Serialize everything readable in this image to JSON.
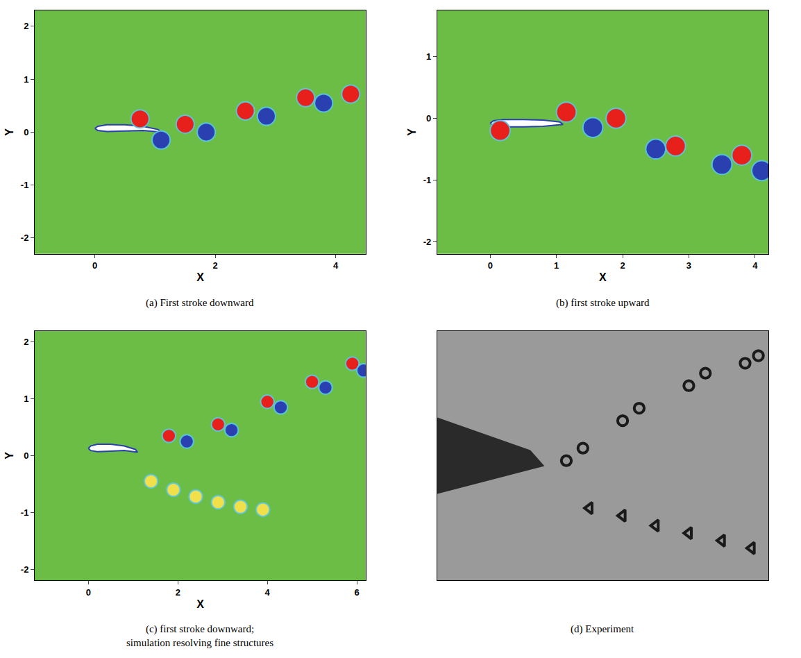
{
  "chart_data": [
    {
      "type": "scatter",
      "caption": [
        "(a) First stroke downward"
      ],
      "x_label": "X",
      "y_label": "Y",
      "xlim": [
        -1,
        4.5
      ],
      "xticks": [
        0,
        2,
        4
      ],
      "ylim": [
        -2.3,
        2.3
      ],
      "yticks": [
        -2,
        -1,
        0,
        1,
        2
      ],
      "color": "#6cbd45",
      "series": [
        {
          "type": "area",
          "color": "#ffffff",
          "x": [
            0,
            0.05,
            0.2,
            0.5,
            0.8,
            1.05,
            1.1,
            0.8,
            0.5,
            0.2,
            0.05,
            0
          ],
          "y": [
            0.07,
            0.11,
            0.14,
            0.14,
            0.11,
            0.05,
            0.0,
            0.03,
            0.02,
            0.01,
            0.03,
            0.07
          ]
        },
        {
          "color": "#e8201c",
          "marker": "circle",
          "x": [
            0.75,
            1.5,
            2.5,
            3.5,
            4.25
          ],
          "y": [
            0.25,
            0.15,
            0.4,
            0.65,
            0.72
          ]
        },
        {
          "color": "#2a3fb0",
          "marker": "circle",
          "x": [
            1.1,
            1.85,
            2.85,
            3.8
          ],
          "y": [
            -0.15,
            0.0,
            0.3,
            0.55
          ]
        }
      ]
    },
    {
      "type": "scatter",
      "caption": [
        "(b) first stroke upward"
      ],
      "x_label": "X",
      "y_label": "Y",
      "xlim": [
        -0.8,
        4.2
      ],
      "xticks": [
        0,
        1,
        2,
        3,
        4
      ],
      "ylim": [
        -2.2,
        1.75
      ],
      "yticks": [
        -2,
        -1,
        0,
        1
      ],
      "color": "#6cbd45",
      "series": [
        {
          "type": "area",
          "color": "#ffffff",
          "x": [
            0,
            0.05,
            0.2,
            0.5,
            0.8,
            1.05,
            1.1,
            0.8,
            0.5,
            0.2,
            0.05,
            0
          ],
          "y": [
            -0.08,
            -0.04,
            -0.02,
            -0.02,
            -0.03,
            -0.06,
            -0.1,
            -0.13,
            -0.14,
            -0.14,
            -0.12,
            -0.08
          ]
        },
        {
          "color": "#e8201c",
          "marker": "circle",
          "x": [
            0.15,
            1.15,
            1.9,
            2.8,
            3.8
          ],
          "y": [
            -0.2,
            0.1,
            0.0,
            -0.45,
            -0.6
          ]
        },
        {
          "color": "#2a3fb0",
          "marker": "circle",
          "x": [
            1.55,
            2.5,
            3.5,
            4.1
          ],
          "y": [
            -0.15,
            -0.5,
            -0.75,
            -0.85
          ]
        }
      ]
    },
    {
      "type": "scatter",
      "caption": [
        "(c) first stroke downward;",
        "simulation resolving fine structures"
      ],
      "x_label": "X",
      "y_label": "Y",
      "xlim": [
        -1.2,
        6.2
      ],
      "xticks": [
        0,
        2,
        4,
        6
      ],
      "ylim": [
        -2.2,
        2.2
      ],
      "yticks": [
        -2,
        -1,
        0,
        1,
        2
      ],
      "color": "#6cbd45",
      "series": [
        {
          "type": "area",
          "color": "#ffffff",
          "x": [
            0,
            0.05,
            0.2,
            0.5,
            0.8,
            1.05,
            1.1,
            0.8,
            0.5,
            0.2,
            0.05,
            0
          ],
          "y": [
            0.13,
            0.17,
            0.2,
            0.2,
            0.17,
            0.11,
            0.06,
            0.09,
            0.08,
            0.07,
            0.09,
            0.13
          ]
        },
        {
          "color": "#f2e04a",
          "marker": "circle",
          "x": [
            1.4,
            1.9,
            2.4,
            2.9,
            3.4,
            3.9
          ],
          "y": [
            -0.45,
            -0.6,
            -0.72,
            -0.82,
            -0.9,
            -0.95
          ]
        },
        {
          "color": "#e8201c",
          "marker": "circle",
          "x": [
            1.8,
            2.9,
            4.0,
            5.0,
            5.9
          ],
          "y": [
            0.35,
            0.55,
            0.95,
            1.3,
            1.62
          ]
        },
        {
          "color": "#2a3fb0",
          "marker": "circle",
          "x": [
            2.2,
            3.2,
            4.3,
            5.3,
            6.15
          ],
          "y": [
            0.25,
            0.45,
            0.85,
            1.2,
            1.5
          ]
        }
      ]
    },
    {
      "type": "scatter",
      "caption": [
        "(d) Experiment"
      ],
      "tick_labels": false,
      "xlim": [
        0,
        10
      ],
      "ylim": [
        0,
        10
      ],
      "color": "#9a9a9a",
      "series": [
        {
          "type": "area",
          "color": "#2a2a2a",
          "x": [
            0,
            2.8,
            3.2,
            0
          ],
          "y": [
            6.5,
            5.2,
            4.6,
            3.5
          ]
        },
        {
          "color": "#1a1a1a",
          "marker": "circle-open",
          "x": [
            3.9,
            4.4,
            5.6,
            6.1,
            7.6,
            8.1,
            9.3,
            9.7
          ],
          "y": [
            4.8,
            5.3,
            6.4,
            6.9,
            7.8,
            8.3,
            8.7,
            9.0
          ]
        },
        {
          "color": "#1a1a1a",
          "marker": "triangle-left-open",
          "x": [
            4.6,
            5.6,
            6.6,
            7.6,
            8.6,
            9.5
          ],
          "y": [
            2.9,
            2.6,
            2.2,
            1.9,
            1.6,
            1.3
          ]
        }
      ]
    }
  ]
}
